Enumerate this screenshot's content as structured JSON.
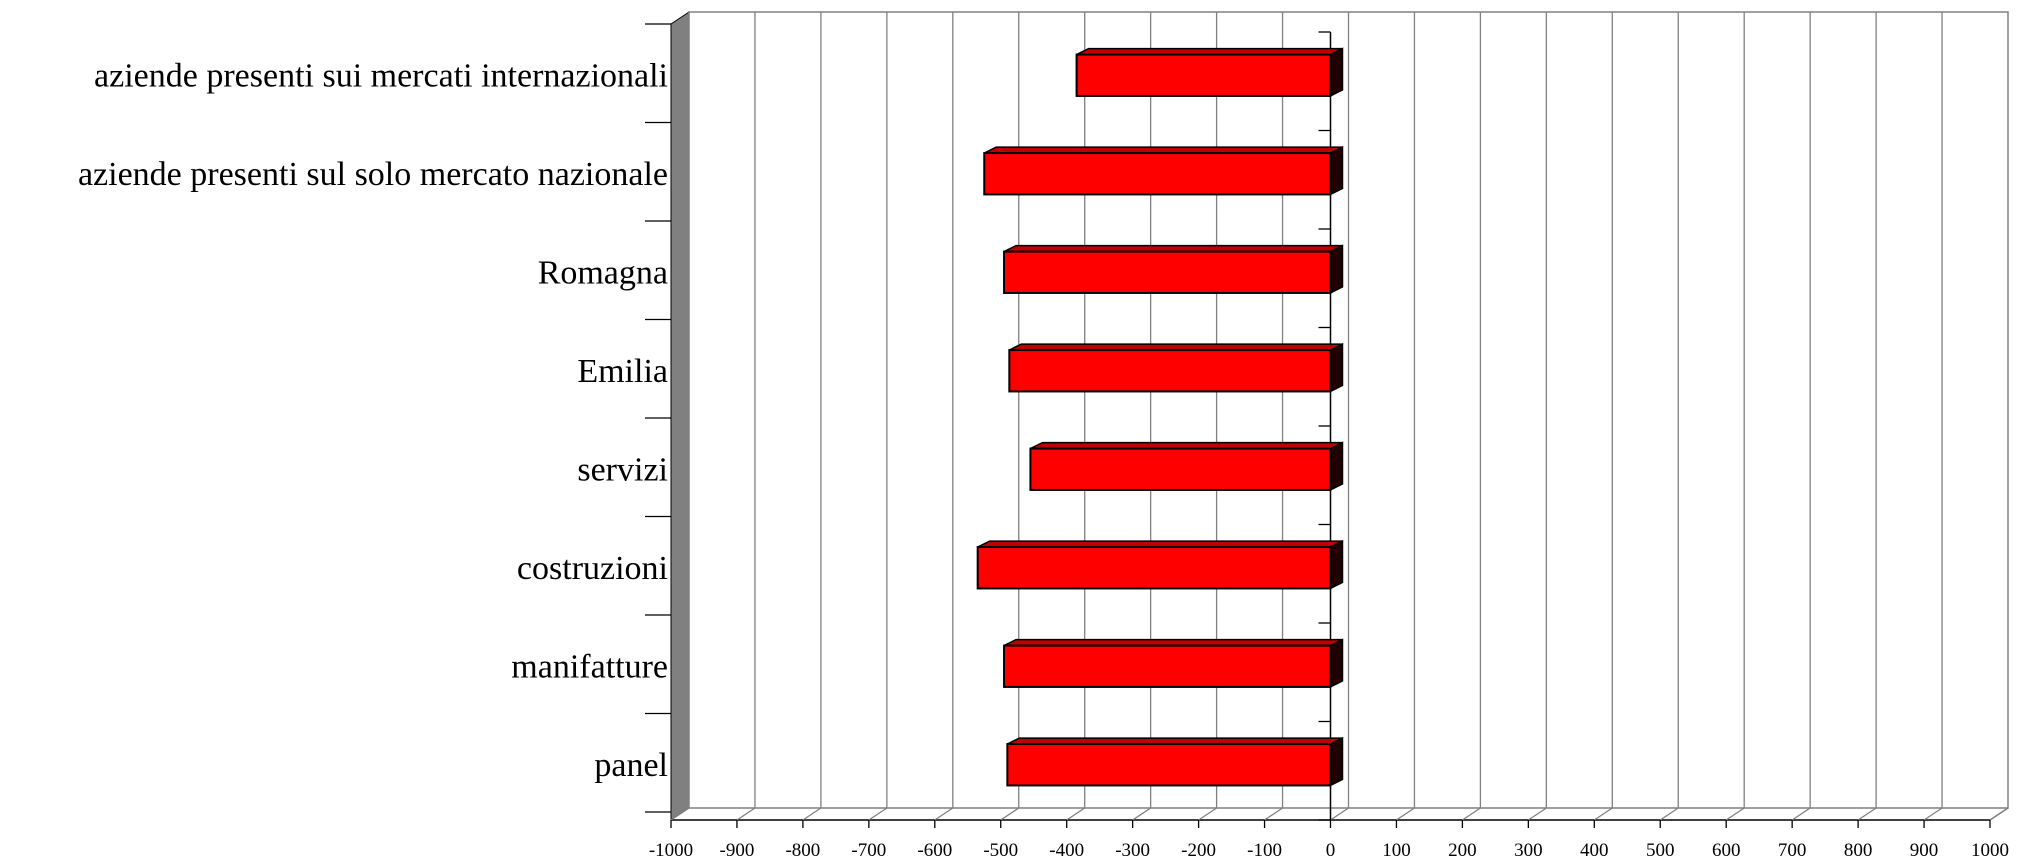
{
  "chart_data": {
    "type": "bar",
    "orientation": "horizontal",
    "style": "3d",
    "categories": [
      "aziende presenti sui mercati internazionali",
      "aziende presenti sul solo mercato nazionale",
      "Romagna",
      "Emilia",
      "servizi",
      "costruzioni",
      "manifatture",
      "panel"
    ],
    "series": [
      {
        "values": [
          -385,
          -525,
          -495,
          -487,
          -455,
          -535,
          -495,
          -490
        ]
      }
    ],
    "xlim": [
      -1000,
      1000
    ],
    "xticks": [
      "-1000",
      "-900",
      "-800",
      "-700",
      "-600",
      "-500",
      "-400",
      "-300",
      "-200",
      "-100",
      "0",
      "100",
      "200",
      "300",
      "400",
      "500",
      "600",
      "700",
      "800",
      "900",
      "1000"
    ],
    "grid": true,
    "legend": "none",
    "colors": {
      "bar": "#ff0000",
      "bar_top": "#c00000",
      "bar_side": "#200000",
      "left_wall": "#808080",
      "grid": "#808080",
      "axis": "#000000"
    }
  }
}
